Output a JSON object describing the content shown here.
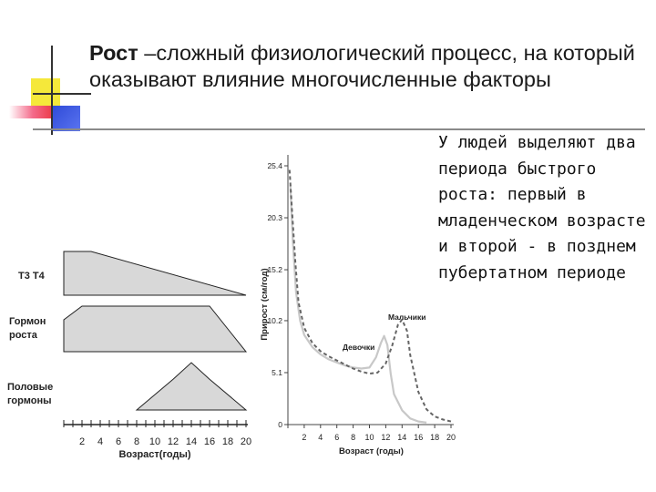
{
  "slide": {
    "title_bold": "Рост",
    "title_rest": " –сложный физиологический процесс, на который оказывают влияние многочисленные факторы",
    "side_text": "У людей выделяют два периода быстрого роста: первый в младенческом возрасте и второй - в позднем пубертатном периоде"
  },
  "colors": {
    "accent_yellow": "#f5e83a",
    "accent_red": "#e8242a",
    "accent_blue": "#2f4bd8",
    "accent_pink": "#f46a8a",
    "chart_fill": "#d8d8d8"
  },
  "chart_data": [
    {
      "type": "area",
      "row_labels": [
        "Т3 Т4",
        "Гормон роста",
        "Половые гормоны"
      ],
      "x_ticks": [
        "2",
        "4",
        "6",
        "8",
        "10",
        "12",
        "14",
        "16",
        "18",
        "20"
      ],
      "xlabel": "Возраст(годы)",
      "xlim": [
        0,
        20
      ],
      "series": [
        {
          "name": "Т3 Т4",
          "x": [
            0,
            3,
            20
          ],
          "y": [
            1,
            1,
            0
          ]
        },
        {
          "name": "Гормон роста",
          "x": [
            0,
            2,
            16,
            20
          ],
          "y": [
            0.7,
            1,
            1,
            0
          ]
        },
        {
          "name": "Половые гормоны",
          "x": [
            8,
            12,
            14,
            16,
            20
          ],
          "y": [
            0,
            0.65,
            1,
            0.65,
            0
          ]
        }
      ]
    },
    {
      "type": "line",
      "xlabel": "Возраст (годы)",
      "ylabel": "Прирост (см/год)",
      "y_ticks": [
        "0",
        "5.1",
        "10.2",
        "15.2",
        "20.3",
        "25.4"
      ],
      "x_ticks": [
        "2",
        "4",
        "6",
        "8",
        "10",
        "12",
        "14",
        "16",
        "18",
        "20"
      ],
      "xlim": [
        0,
        20
      ],
      "ylim": [
        0,
        25.4
      ],
      "series": [
        {
          "name": "Девочки",
          "style": "solid",
          "x": [
            0.3,
            0.6,
            1,
            1.5,
            2,
            3,
            4,
            5,
            6,
            7,
            8,
            9,
            10,
            10.8,
            11.4,
            11.8,
            12.2,
            12.6,
            13,
            14,
            15,
            16,
            17
          ],
          "y": [
            23.5,
            18,
            13,
            10.2,
            8.8,
            7.6,
            6.9,
            6.4,
            6.1,
            5.8,
            5.6,
            5.5,
            5.6,
            6.6,
            8,
            8.7,
            7.8,
            5,
            3,
            1.4,
            0.6,
            0.3,
            0.2
          ]
        },
        {
          "name": "Мальчики",
          "style": "dashed",
          "x": [
            0.2,
            0.5,
            0.9,
            1.3,
            2,
            3,
            4,
            5,
            6,
            7,
            8,
            9,
            10,
            11,
            12,
            12.8,
            13.5,
            14,
            14.6,
            15,
            16,
            17,
            18,
            19,
            20
          ],
          "y": [
            25,
            21,
            16,
            12,
            9.5,
            8,
            7.2,
            6.7,
            6.3,
            5.9,
            5.5,
            5.2,
            5,
            5.1,
            6,
            7.8,
            9.8,
            10.3,
            9.2,
            6.8,
            3.2,
            1.5,
            0.8,
            0.5,
            0.3
          ]
        }
      ],
      "annotations": [
        "Девочки",
        "Мальчики"
      ]
    }
  ]
}
